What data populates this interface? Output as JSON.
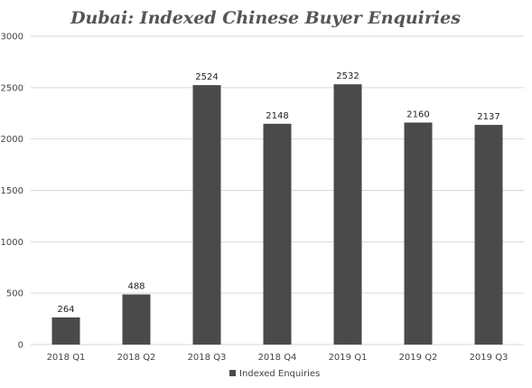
{
  "chart_data": {
    "type": "bar",
    "title": "Dubai: Indexed Chinese Buyer Enquiries",
    "categories": [
      "2018 Q1",
      "2018 Q2",
      "2018 Q3",
      "2018 Q4",
      "2019 Q1",
      "2019 Q2",
      "2019 Q3"
    ],
    "series": [
      {
        "name": "Indexed Enquiries",
        "values": [
          264,
          488,
          2524,
          2148,
          2532,
          2160,
          2137
        ],
        "color": "#4a4a4a"
      }
    ],
    "ylim": [
      0,
      3000
    ],
    "yticks": [
      0,
      500,
      1000,
      1500,
      2000,
      2500,
      3000
    ],
    "grid": true,
    "legend_position": "bottom"
  }
}
